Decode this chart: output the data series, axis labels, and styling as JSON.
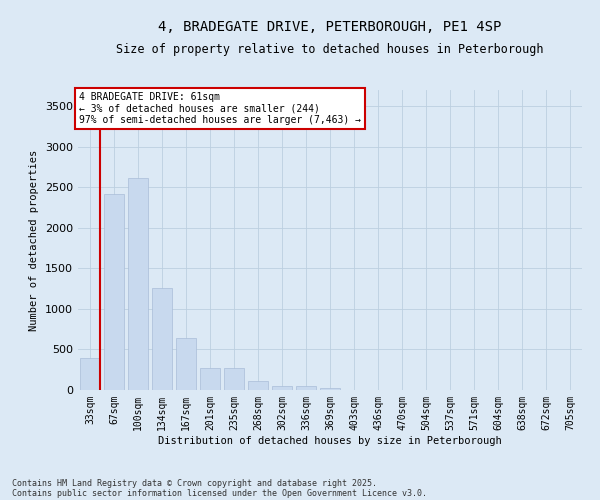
{
  "title_line1": "4, BRADEGATE DRIVE, PETERBOROUGH, PE1 4SP",
  "title_line2": "Size of property relative to detached houses in Peterborough",
  "xlabel": "Distribution of detached houses by size in Peterborough",
  "ylabel": "Number of detached properties",
  "categories": [
    "33sqm",
    "67sqm",
    "100sqm",
    "134sqm",
    "167sqm",
    "201sqm",
    "235sqm",
    "268sqm",
    "302sqm",
    "336sqm",
    "369sqm",
    "403sqm",
    "436sqm",
    "470sqm",
    "504sqm",
    "537sqm",
    "571sqm",
    "604sqm",
    "638sqm",
    "672sqm",
    "705sqm"
  ],
  "values": [
    390,
    2420,
    2620,
    1260,
    640,
    275,
    270,
    105,
    55,
    45,
    25,
    0,
    0,
    0,
    0,
    0,
    0,
    0,
    0,
    0,
    0
  ],
  "bar_color": "#c8d9ee",
  "bar_edge_color": "#aabdd8",
  "annotation_text": "4 BRADEGATE DRIVE: 61sqm\n← 3% of detached houses are smaller (244)\n97% of semi-detached houses are larger (7,463) →",
  "annotation_box_color": "#ffffff",
  "annotation_box_edge_color": "#cc0000",
  "marker_line_color": "#cc0000",
  "ylim": [
    0,
    3700
  ],
  "yticks": [
    0,
    500,
    1000,
    1500,
    2000,
    2500,
    3000,
    3500
  ],
  "grid_color": "#bccfe0",
  "background_color": "#dce9f5",
  "footer_line1": "Contains HM Land Registry data © Crown copyright and database right 2025.",
  "footer_line2": "Contains public sector information licensed under the Open Government Licence v3.0.",
  "title_fontsize": 10,
  "subtitle_fontsize": 8.5,
  "label_fontsize": 7.5,
  "tick_fontsize": 7,
  "footer_fontsize": 6
}
